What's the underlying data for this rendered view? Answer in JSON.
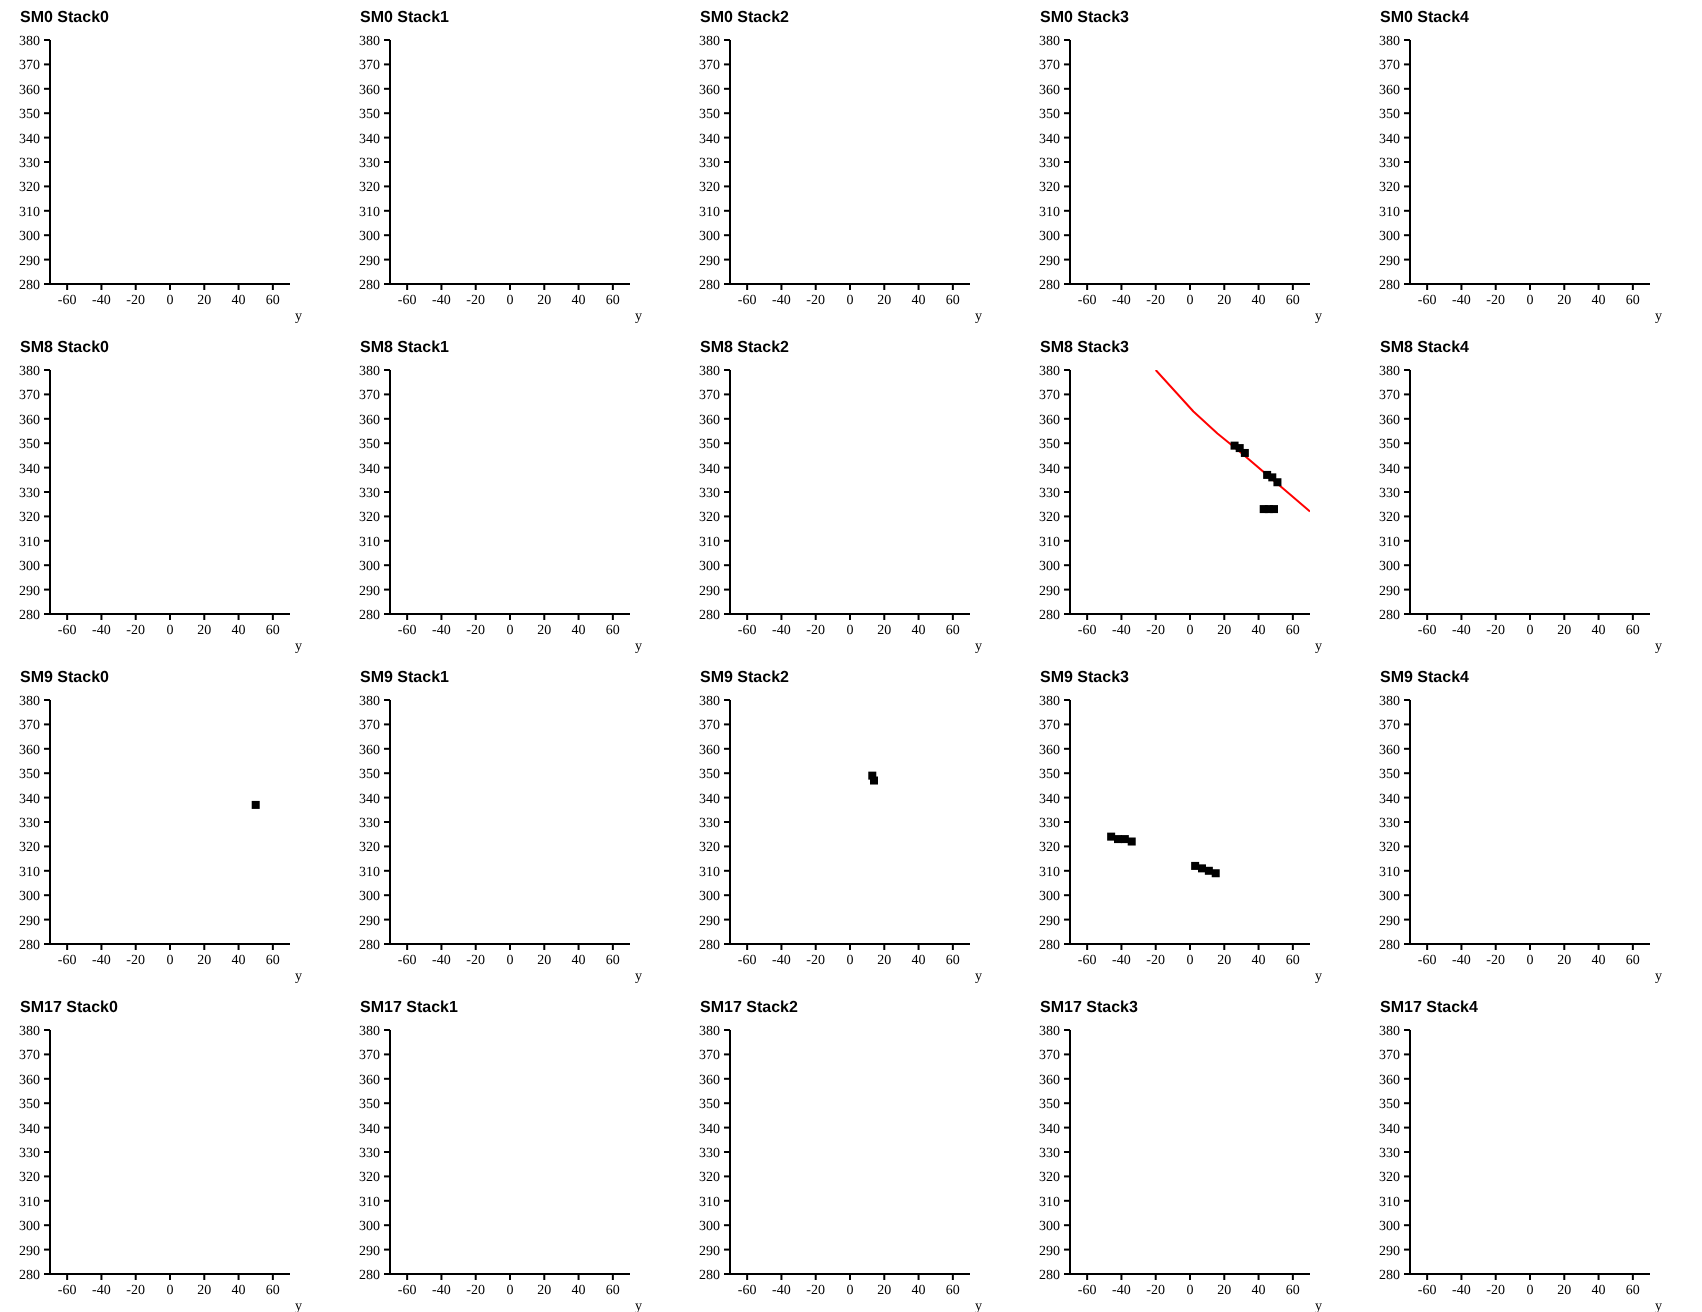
{
  "chart_data": [
    {
      "type": "scatter",
      "title": "SM0 Stack0",
      "xlabel": "y",
      "xlim": [
        -70,
        70
      ],
      "xticks": [
        -60,
        -40,
        -20,
        0,
        20,
        40,
        60
      ],
      "ylim": [
        280,
        380
      ],
      "yticks": [
        280,
        290,
        300,
        310,
        320,
        330,
        340,
        350,
        360,
        370,
        380
      ]
    },
    {
      "type": "scatter",
      "title": "SM0 Stack1",
      "xlabel": "y",
      "xlim": [
        -70,
        70
      ],
      "xticks": [
        -60,
        -40,
        -20,
        0,
        20,
        40,
        60
      ],
      "ylim": [
        280,
        380
      ],
      "yticks": [
        280,
        290,
        300,
        310,
        320,
        330,
        340,
        350,
        360,
        370,
        380
      ]
    },
    {
      "type": "scatter",
      "title": "SM0 Stack2",
      "xlabel": "y",
      "xlim": [
        -70,
        70
      ],
      "xticks": [
        -60,
        -40,
        -20,
        0,
        20,
        40,
        60
      ],
      "ylim": [
        280,
        380
      ],
      "yticks": [
        280,
        290,
        300,
        310,
        320,
        330,
        340,
        350,
        360,
        370,
        380
      ]
    },
    {
      "type": "scatter",
      "title": "SM0 Stack3",
      "xlabel": "y",
      "xlim": [
        -70,
        70
      ],
      "xticks": [
        -60,
        -40,
        -20,
        0,
        20,
        40,
        60
      ],
      "ylim": [
        280,
        380
      ],
      "yticks": [
        280,
        290,
        300,
        310,
        320,
        330,
        340,
        350,
        360,
        370,
        380
      ]
    },
    {
      "type": "scatter",
      "title": "SM0 Stack4",
      "xlabel": "y",
      "xlim": [
        -70,
        70
      ],
      "xticks": [
        -60,
        -40,
        -20,
        0,
        20,
        40,
        60
      ],
      "ylim": [
        280,
        380
      ],
      "yticks": [
        280,
        290,
        300,
        310,
        320,
        330,
        340,
        350,
        360,
        370,
        380
      ]
    },
    {
      "type": "scatter",
      "title": "SM8 Stack0",
      "xlabel": "y",
      "xlim": [
        -70,
        70
      ],
      "xticks": [
        -60,
        -40,
        -20,
        0,
        20,
        40,
        60
      ],
      "ylim": [
        280,
        380
      ],
      "yticks": [
        280,
        290,
        300,
        310,
        320,
        330,
        340,
        350,
        360,
        370,
        380
      ]
    },
    {
      "type": "scatter",
      "title": "SM8 Stack1",
      "xlabel": "y",
      "xlim": [
        -70,
        70
      ],
      "xticks": [
        -60,
        -40,
        -20,
        0,
        20,
        40,
        60
      ],
      "ylim": [
        280,
        380
      ],
      "yticks": [
        280,
        290,
        300,
        310,
        320,
        330,
        340,
        350,
        360,
        370,
        380
      ]
    },
    {
      "type": "scatter",
      "title": "SM8 Stack2",
      "xlabel": "y",
      "xlim": [
        -70,
        70
      ],
      "xticks": [
        -60,
        -40,
        -20,
        0,
        20,
        40,
        60
      ],
      "ylim": [
        280,
        380
      ],
      "yticks": [
        280,
        290,
        300,
        310,
        320,
        330,
        340,
        350,
        360,
        370,
        380
      ]
    },
    {
      "type": "scatter",
      "title": "SM8 Stack3",
      "xlabel": "y",
      "xlim": [
        -70,
        70
      ],
      "xticks": [
        -60,
        -40,
        -20,
        0,
        20,
        40,
        60
      ],
      "ylim": [
        280,
        380
      ],
      "yticks": [
        280,
        290,
        300,
        310,
        320,
        330,
        340,
        350,
        360,
        370,
        380
      ],
      "marker": "square",
      "series": [
        {
          "type": "scatter",
          "color": "#000000",
          "x": [
            26,
            29,
            32,
            45,
            48,
            51,
            43,
            46,
            49
          ],
          "values": [
            349,
            348,
            346,
            337,
            336,
            334,
            323,
            323,
            323
          ]
        },
        {
          "type": "line",
          "color": "#ff0000",
          "marker": "none",
          "line_style": "solid",
          "x": [
            -20,
            2,
            16,
            30,
            55,
            70
          ],
          "values": [
            380,
            363,
            354,
            346,
            331,
            322
          ]
        }
      ]
    },
    {
      "type": "scatter",
      "title": "SM8 Stack4",
      "xlabel": "y",
      "xlim": [
        -70,
        70
      ],
      "xticks": [
        -60,
        -40,
        -20,
        0,
        20,
        40,
        60
      ],
      "ylim": [
        280,
        380
      ],
      "yticks": [
        280,
        290,
        300,
        310,
        320,
        330,
        340,
        350,
        360,
        370,
        380
      ]
    },
    {
      "type": "scatter",
      "title": "SM9 Stack0",
      "xlabel": "y",
      "xlim": [
        -70,
        70
      ],
      "xticks": [
        -60,
        -40,
        -20,
        0,
        20,
        40,
        60
      ],
      "ylim": [
        280,
        380
      ],
      "yticks": [
        280,
        290,
        300,
        310,
        320,
        330,
        340,
        350,
        360,
        370,
        380
      ],
      "marker": "square",
      "series": [
        {
          "color": "#000000",
          "x": [
            50
          ],
          "values": [
            337
          ]
        }
      ]
    },
    {
      "type": "scatter",
      "title": "SM9 Stack1",
      "xlabel": "y",
      "xlim": [
        -70,
        70
      ],
      "xticks": [
        -60,
        -40,
        -20,
        0,
        20,
        40,
        60
      ],
      "ylim": [
        280,
        380
      ],
      "yticks": [
        280,
        290,
        300,
        310,
        320,
        330,
        340,
        350,
        360,
        370,
        380
      ]
    },
    {
      "type": "scatter",
      "title": "SM9 Stack2",
      "xlabel": "y",
      "xlim": [
        -70,
        70
      ],
      "xticks": [
        -60,
        -40,
        -20,
        0,
        20,
        40,
        60
      ],
      "ylim": [
        280,
        380
      ],
      "yticks": [
        280,
        290,
        300,
        310,
        320,
        330,
        340,
        350,
        360,
        370,
        380
      ],
      "marker": "square",
      "series": [
        {
          "color": "#000000",
          "x": [
            13,
            14
          ],
          "values": [
            349,
            347
          ]
        }
      ]
    },
    {
      "type": "scatter",
      "title": "SM9 Stack3",
      "xlabel": "y",
      "xlim": [
        -70,
        70
      ],
      "xticks": [
        -60,
        -40,
        -20,
        0,
        20,
        40,
        60
      ],
      "ylim": [
        280,
        380
      ],
      "yticks": [
        280,
        290,
        300,
        310,
        320,
        330,
        340,
        350,
        360,
        370,
        380
      ],
      "marker": "square",
      "series": [
        {
          "color": "#000000",
          "x": [
            -46,
            -42,
            -38,
            -34,
            3,
            7,
            11,
            15
          ],
          "values": [
            324,
            323,
            323,
            322,
            312,
            311,
            310,
            309
          ]
        }
      ]
    },
    {
      "type": "scatter",
      "title": "SM9 Stack4",
      "xlabel": "y",
      "xlim": [
        -70,
        70
      ],
      "xticks": [
        -60,
        -40,
        -20,
        0,
        20,
        40,
        60
      ],
      "ylim": [
        280,
        380
      ],
      "yticks": [
        280,
        290,
        300,
        310,
        320,
        330,
        340,
        350,
        360,
        370,
        380
      ]
    },
    {
      "type": "scatter",
      "title": "SM17 Stack0",
      "xlabel": "y",
      "xlim": [
        -70,
        70
      ],
      "xticks": [
        -60,
        -40,
        -20,
        0,
        20,
        40,
        60
      ],
      "ylim": [
        280,
        380
      ],
      "yticks": [
        280,
        290,
        300,
        310,
        320,
        330,
        340,
        350,
        360,
        370,
        380
      ]
    },
    {
      "type": "scatter",
      "title": "SM17 Stack1",
      "xlabel": "y",
      "xlim": [
        -70,
        70
      ],
      "xticks": [
        -60,
        -40,
        -20,
        0,
        20,
        40,
        60
      ],
      "ylim": [
        280,
        380
      ],
      "yticks": [
        280,
        290,
        300,
        310,
        320,
        330,
        340,
        350,
        360,
        370,
        380
      ]
    },
    {
      "type": "scatter",
      "title": "SM17 Stack2",
      "xlabel": "y",
      "xlim": [
        -70,
        70
      ],
      "xticks": [
        -60,
        -40,
        -20,
        0,
        20,
        40,
        60
      ],
      "ylim": [
        280,
        380
      ],
      "yticks": [
        280,
        290,
        300,
        310,
        320,
        330,
        340,
        350,
        360,
        370,
        380
      ]
    },
    {
      "type": "scatter",
      "title": "SM17 Stack3",
      "xlabel": "y",
      "xlim": [
        -70,
        70
      ],
      "xticks": [
        -60,
        -40,
        -20,
        0,
        20,
        40,
        60
      ],
      "ylim": [
        280,
        380
      ],
      "yticks": [
        280,
        290,
        300,
        310,
        320,
        330,
        340,
        350,
        360,
        370,
        380
      ]
    },
    {
      "type": "scatter",
      "title": "SM17 Stack4",
      "xlabel": "y",
      "xlim": [
        -70,
        70
      ],
      "xticks": [
        -60,
        -40,
        -20,
        0,
        20,
        40,
        60
      ],
      "ylim": [
        280,
        380
      ],
      "yticks": [
        280,
        290,
        300,
        310,
        320,
        330,
        340,
        350,
        360,
        370,
        380
      ]
    }
  ]
}
